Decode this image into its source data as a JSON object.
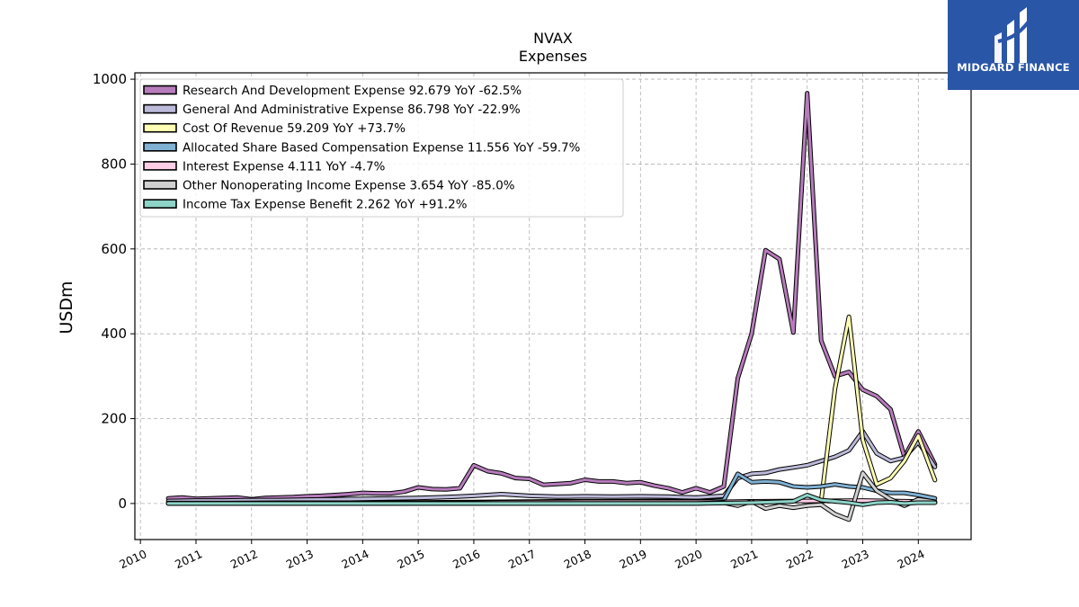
{
  "chart_data": {
    "type": "line",
    "title": "NVAX",
    "subtitle": "Expenses",
    "xlabel": "",
    "ylabel": "USDm",
    "xlim": [
      2009.9,
      2024.95
    ],
    "ylim": [
      -85,
      1015
    ],
    "yticks": [
      0,
      200,
      400,
      600,
      800,
      1000
    ],
    "xticks": [
      "2010",
      "2011",
      "2012",
      "2013",
      "2014",
      "2015",
      "2016",
      "2017",
      "2018",
      "2019",
      "2020",
      "2021",
      "2022",
      "2023",
      "2024"
    ],
    "grid": true,
    "legend_position": "top-left",
    "series": [
      {
        "name": "Research And Development Expense  92.679 YoY -62.5%",
        "color": "#b77cbc",
        "x": [
          2010.5,
          2010.75,
          2011.0,
          2011.25,
          2011.5,
          2011.75,
          2012.0,
          2012.25,
          2012.5,
          2012.75,
          2013.0,
          2013.25,
          2013.5,
          2013.75,
          2014.0,
          2014.25,
          2014.5,
          2014.75,
          2015.0,
          2015.25,
          2015.5,
          2015.75,
          2016.0,
          2016.25,
          2016.5,
          2016.75,
          2017.0,
          2017.25,
          2017.5,
          2017.75,
          2018.0,
          2018.25,
          2018.5,
          2018.75,
          2019.0,
          2019.25,
          2019.5,
          2019.75,
          2020.0,
          2020.25,
          2020.5,
          2020.75,
          2021.0,
          2021.25,
          2021.5,
          2021.75,
          2022.0,
          2022.25,
          2022.5,
          2022.75,
          2023.0,
          2023.25,
          2023.5,
          2023.75,
          2024.0,
          2024.3
        ],
        "values": [
          12,
          14,
          11,
          12,
          13,
          14,
          10,
          13,
          14,
          15,
          17,
          18,
          20,
          22,
          25,
          24,
          24,
          28,
          38,
          34,
          33,
          36,
          90,
          76,
          71,
          60,
          58,
          44,
          46,
          48,
          56,
          52,
          52,
          48,
          50,
          42,
          36,
          26,
          36,
          26,
          40,
          295,
          400,
          597,
          576,
          403,
          967,
          384,
          300,
          310,
          268,
          253,
          222,
          110,
          170,
          92
        ]
      },
      {
        "name": "General And Administrative Expense  86.798 YoY -22.9%",
        "color": "#bcbad9",
        "x": [
          2010.5,
          2011.0,
          2011.5,
          2012.0,
          2012.5,
          2013.0,
          2013.5,
          2014.0,
          2014.5,
          2015.0,
          2015.5,
          2016.0,
          2016.5,
          2017.0,
          2017.5,
          2018.0,
          2018.5,
          2019.0,
          2019.5,
          2020.0,
          2020.5,
          2020.75,
          2021.0,
          2021.25,
          2021.5,
          2021.75,
          2022.0,
          2022.25,
          2022.5,
          2022.75,
          2023.0,
          2023.25,
          2023.5,
          2023.75,
          2024.0,
          2024.3
        ],
        "values": [
          6,
          7,
          7,
          8,
          8,
          9,
          10,
          11,
          12,
          13,
          15,
          18,
          22,
          18,
          16,
          17,
          16,
          17,
          16,
          14,
          18,
          60,
          70,
          72,
          80,
          85,
          90,
          100,
          110,
          125,
          170,
          118,
          100,
          108,
          145,
          86
        ]
      },
      {
        "name": "Cost Of Revenue  59.209 YoY +73.7%",
        "color": "#ffffb3",
        "x": [
          2022.25,
          2022.5,
          2022.75,
          2023.0,
          2023.25,
          2023.5,
          2023.75,
          2024.0,
          2024.3
        ],
        "values": [
          5,
          270,
          440,
          150,
          45,
          60,
          100,
          160,
          55
        ]
      },
      {
        "name": "Allocated Share Based Compensation Expense  11.556 YoY -59.7%",
        "color": "#80b1d3",
        "x": [
          2010.5,
          2011.5,
          2012.5,
          2013.5,
          2014.5,
          2015.5,
          2016.5,
          2017.5,
          2018.5,
          2019.5,
          2020.25,
          2020.5,
          2020.75,
          2021.0,
          2021.25,
          2021.5,
          2021.75,
          2022.0,
          2022.25,
          2022.5,
          2022.75,
          2023.0,
          2023.25,
          2023.5,
          2023.75,
          2024.0,
          2024.3
        ],
        "values": [
          1,
          1,
          2,
          2,
          2,
          3,
          4,
          5,
          5,
          6,
          6,
          8,
          70,
          50,
          52,
          50,
          40,
          38,
          40,
          45,
          40,
          38,
          30,
          25,
          25,
          20,
          12
        ]
      },
      {
        "name": "Interest Expense  4.111 YoY -4.7%",
        "color": "#fccde5",
        "x": [
          2010.5,
          2012.0,
          2014.0,
          2016.0,
          2016.5,
          2018.0,
          2020.0,
          2020.5,
          2021.0,
          2022.0,
          2023.0,
          2023.5,
          2024.0,
          2024.3
        ],
        "values": [
          0,
          0,
          0,
          2,
          3,
          4,
          4,
          4,
          5,
          6,
          7,
          6,
          5,
          4
        ]
      },
      {
        "name": "Other Nonoperating Income Expense  3.654 YoY -85.0%",
        "color": "#d0d0d0",
        "x": [
          2010.5,
          2012.0,
          2014.0,
          2016.0,
          2018.0,
          2020.0,
          2020.5,
          2020.75,
          2021.0,
          2021.25,
          2021.5,
          2021.75,
          2022.0,
          2022.25,
          2022.5,
          2022.75,
          2023.0,
          2023.25,
          2023.5,
          2023.75,
          2024.0,
          2024.3
        ],
        "values": [
          0,
          0,
          0,
          0,
          0,
          0,
          2,
          -5,
          5,
          -12,
          -5,
          -10,
          -5,
          -3,
          -25,
          -38,
          72,
          30,
          10,
          -5,
          10,
          4
        ]
      },
      {
        "name": "Income Tax Expense Benefit  2.262 YoY +91.2%",
        "color": "#8dd3c7",
        "x": [
          2010.5,
          2012.0,
          2014.0,
          2016.0,
          2018.0,
          2020.0,
          2021.0,
          2021.75,
          2022.0,
          2022.25,
          2022.5,
          2022.75,
          2023.0,
          2023.25,
          2023.5,
          2023.75,
          2024.0,
          2024.3
        ],
        "values": [
          0,
          0,
          0,
          0,
          0,
          0,
          2,
          5,
          20,
          8,
          5,
          2,
          -3,
          2,
          3,
          0,
          2,
          2
        ]
      }
    ]
  },
  "logo": {
    "text": "MIDGARD FINANCE",
    "color": "#2a56a8"
  }
}
